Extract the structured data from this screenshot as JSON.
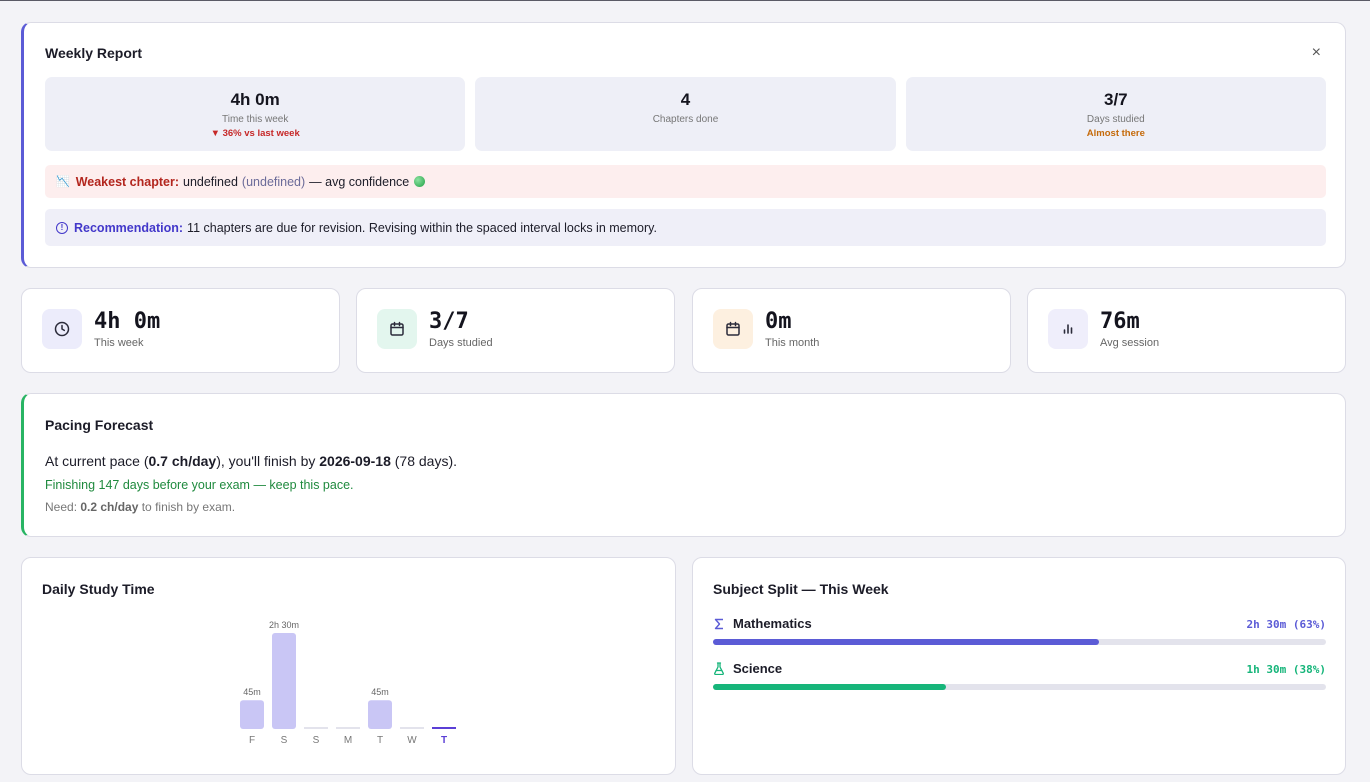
{
  "weekly_report": {
    "title": "Weekly Report",
    "close": "×",
    "tiles": [
      {
        "value": "4h 0m",
        "label": "Time this week",
        "sub": "▼ 36% vs last week"
      },
      {
        "value": "4",
        "label": "Chapters done",
        "sub": ""
      },
      {
        "value": "3/7",
        "label": "Days studied",
        "sub": "Almost there"
      }
    ],
    "weakest": {
      "icon": "📉",
      "label": "Weakest chapter:",
      "name": "undefined",
      "paren": "(undefined)",
      "suffix": "— avg confidence"
    },
    "recommendation": {
      "label": "Recommendation:",
      "text": "11 chapters are due for revision. Revising within the spaced interval locks in memory."
    }
  },
  "stats": [
    {
      "value": "4h 0m",
      "label": "This week",
      "icon": "clock-icon",
      "bg": "#ececfb",
      "fg": "#2b2b3a"
    },
    {
      "value": "3/7",
      "label": "Days studied",
      "icon": "calendar-icon",
      "bg": "#e3f6ee",
      "fg": "#2b2b3a"
    },
    {
      "value": "0m",
      "label": "This month",
      "icon": "calendar-icon",
      "bg": "#fdf0e0",
      "fg": "#2b2b3a"
    },
    {
      "value": "76m",
      "label": "Avg session",
      "icon": "bar-chart-icon",
      "bg": "#efeefb",
      "fg": "#2b2b3a"
    }
  ],
  "pacing": {
    "title": "Pacing Forecast",
    "line1_a": "At current pace (",
    "pace": "0.7 ch/day",
    "line1_b": "), you'll finish by ",
    "date": "2026-09-18",
    "line1_c": " (78 days).",
    "line2": "Finishing 147 days before your exam — keep this pace.",
    "line3_a": "Need: ",
    "need": "0.2 ch/day",
    "line3_b": " to finish by exam."
  },
  "daily": {
    "title": "Daily Study Time"
  },
  "split": {
    "title": "Subject Split — This Week",
    "subjects": [
      {
        "name": "Mathematics",
        "value": "2h 30m (63%)",
        "icon": "sigma-icon",
        "color": "#5b5bd6",
        "fraction": 0.63
      },
      {
        "name": "Science",
        "value": "1h 30m (38%)",
        "icon": "flask-icon",
        "color": "#16b57a",
        "fraction": 0.38
      }
    ]
  },
  "chart_data": {
    "type": "bar",
    "title": "Daily Study Time",
    "categories": [
      "F",
      "S",
      "S",
      "M",
      "T",
      "W",
      "T"
    ],
    "values": [
      45,
      150,
      0,
      0,
      45,
      0,
      0
    ],
    "data_labels": [
      "45m",
      "2h 30m",
      "",
      "",
      "45m",
      "",
      ""
    ],
    "unit": "minutes",
    "highlight_index": 6,
    "bar_color": "#c9c6f5",
    "highlight_color": "#5b3fd6"
  }
}
